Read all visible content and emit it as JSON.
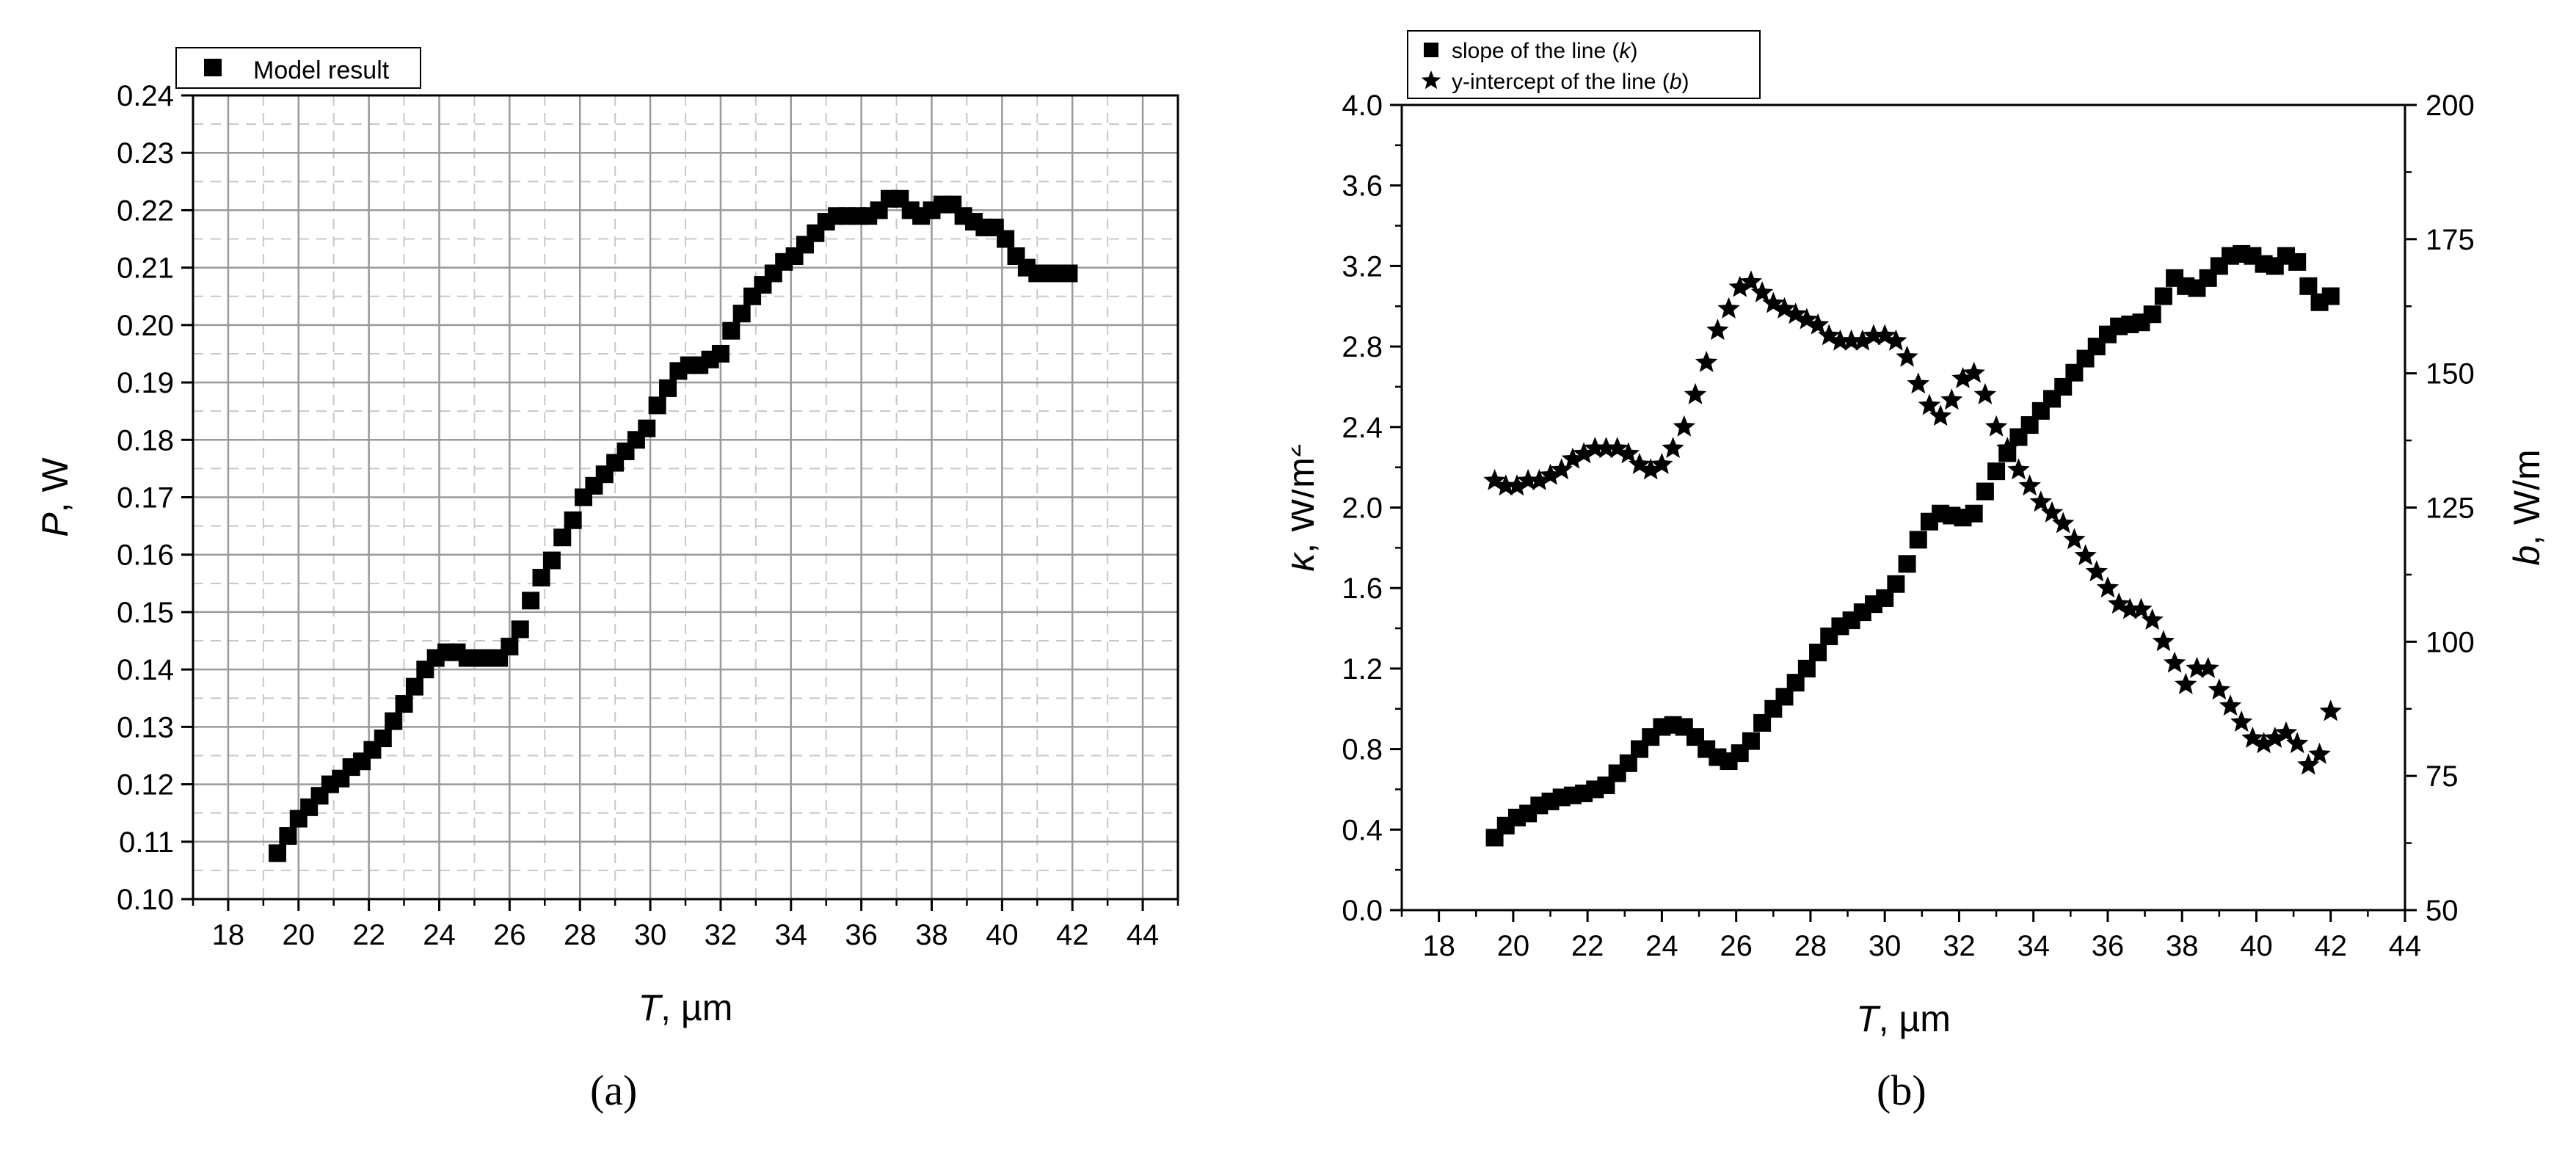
{
  "chart_data": [
    {
      "panel": "(a)",
      "type": "scatter",
      "xlabel_italic": "T",
      "xlabel_rest": ", µm",
      "ylabel_italic": "P",
      "ylabel_rest": ", W",
      "xlim": [
        17,
        45
      ],
      "ylim": [
        0.1,
        0.24
      ],
      "xticks": [
        "18",
        "20",
        "22",
        "24",
        "26",
        "28",
        "30",
        "32",
        "34",
        "36",
        "38",
        "40",
        "42",
        "44"
      ],
      "yticks": [
        "0.10",
        "0.11",
        "0.12",
        "0.13",
        "0.14",
        "0.15",
        "0.16",
        "0.17",
        "0.18",
        "0.19",
        "0.20",
        "0.21",
        "0.22",
        "0.23",
        "0.24"
      ],
      "grid": true,
      "legend_position": "top-left",
      "series": [
        {
          "name": "Model result",
          "marker": "square",
          "x": [
            19.4,
            19.7,
            20.0,
            20.3,
            20.6,
            20.9,
            21.2,
            21.5,
            21.8,
            22.1,
            22.4,
            22.7,
            23.0,
            23.3,
            23.6,
            23.9,
            24.2,
            24.5,
            24.8,
            25.1,
            25.4,
            25.7,
            26.0,
            26.3,
            26.6,
            26.9,
            27.2,
            27.5,
            27.8,
            28.1,
            28.4,
            28.7,
            29.0,
            29.3,
            29.6,
            29.9,
            30.2,
            30.5,
            30.8,
            31.1,
            31.4,
            31.7,
            32.0,
            32.3,
            32.6,
            32.9,
            33.2,
            33.5,
            33.8,
            34.1,
            34.4,
            34.7,
            35.0,
            35.3,
            35.6,
            35.9,
            36.2,
            36.5,
            36.8,
            37.1,
            37.4,
            37.7,
            38.0,
            38.3,
            38.6,
            38.9,
            39.2,
            39.5,
            39.8,
            40.1,
            40.4,
            40.7,
            41.0,
            41.3,
            41.6,
            41.9
          ],
          "y": [
            0.108,
            0.111,
            0.114,
            0.116,
            0.118,
            0.12,
            0.121,
            0.123,
            0.124,
            0.126,
            0.128,
            0.131,
            0.134,
            0.137,
            0.14,
            0.142,
            0.143,
            0.143,
            0.142,
            0.142,
            0.142,
            0.142,
            0.144,
            0.147,
            0.152,
            0.156,
            0.159,
            0.163,
            0.166,
            0.17,
            0.172,
            0.174,
            0.176,
            0.178,
            0.18,
            0.182,
            0.186,
            0.189,
            0.192,
            0.193,
            0.193,
            0.194,
            0.195,
            0.199,
            0.202,
            0.205,
            0.207,
            0.209,
            0.211,
            0.212,
            0.214,
            0.216,
            0.218,
            0.219,
            0.219,
            0.219,
            0.219,
            0.22,
            0.222,
            0.222,
            0.22,
            0.219,
            0.22,
            0.221,
            0.221,
            0.219,
            0.218,
            0.217,
            0.217,
            0.215,
            0.212,
            0.21,
            0.209,
            0.209,
            0.209,
            0.209
          ]
        }
      ]
    },
    {
      "panel": "(b)",
      "type": "scatter",
      "xlabel_italic": "T",
      "xlabel_rest": ", µm",
      "ylabel_left_italic": "k",
      "ylabel_left_rest": ", W/m",
      "ylabel_left_sup": "2",
      "ylabel_right_italic": "b",
      "ylabel_right_rest": ", W/m",
      "xlim": [
        17,
        44
      ],
      "ylim_left": [
        0.0,
        4.0
      ],
      "ylim_right": [
        50,
        200
      ],
      "xticks": [
        "18",
        "20",
        "22",
        "24",
        "26",
        "28",
        "30",
        "32",
        "34",
        "36",
        "38",
        "40",
        "42",
        "44"
      ],
      "yticks_left": [
        "0.0",
        "0.4",
        "0.8",
        "1.2",
        "1.6",
        "2.0",
        "2.4",
        "2.8",
        "3.2",
        "3.6",
        "4.0"
      ],
      "yticks_right": [
        "50",
        "75",
        "100",
        "125",
        "150",
        "175",
        "200"
      ],
      "grid": false,
      "legend_position": "top-left",
      "series": [
        {
          "name_prefix": "slope of the line (",
          "name_italic": "k",
          "name_suffix": ")",
          "marker": "square",
          "axis": "left",
          "x": [
            19.5,
            19.8,
            20.1,
            20.4,
            20.7,
            21.0,
            21.3,
            21.6,
            21.9,
            22.2,
            22.5,
            22.8,
            23.1,
            23.4,
            23.7,
            24.0,
            24.3,
            24.6,
            24.9,
            25.2,
            25.5,
            25.8,
            26.1,
            26.4,
            26.7,
            27.0,
            27.3,
            27.6,
            27.9,
            28.2,
            28.5,
            28.8,
            29.1,
            29.4,
            29.7,
            30.0,
            30.3,
            30.6,
            30.9,
            31.2,
            31.5,
            31.8,
            32.1,
            32.4,
            32.7,
            33.0,
            33.3,
            33.6,
            33.9,
            34.2,
            34.5,
            34.8,
            35.1,
            35.4,
            35.7,
            36.0,
            36.3,
            36.6,
            36.9,
            37.2,
            37.5,
            37.8,
            38.1,
            38.4,
            38.7,
            39.0,
            39.3,
            39.6,
            39.9,
            40.2,
            40.5,
            40.8,
            41.1,
            41.4,
            41.7,
            42.0
          ],
          "y": [
            0.36,
            0.42,
            0.46,
            0.48,
            0.52,
            0.54,
            0.56,
            0.57,
            0.58,
            0.6,
            0.62,
            0.68,
            0.73,
            0.8,
            0.86,
            0.91,
            0.92,
            0.91,
            0.86,
            0.8,
            0.76,
            0.74,
            0.78,
            0.84,
            0.93,
            1.0,
            1.06,
            1.13,
            1.2,
            1.28,
            1.36,
            1.41,
            1.44,
            1.48,
            1.52,
            1.55,
            1.62,
            1.72,
            1.84,
            1.93,
            1.97,
            1.96,
            1.95,
            1.97,
            2.08,
            2.18,
            2.27,
            2.35,
            2.41,
            2.48,
            2.54,
            2.6,
            2.67,
            2.74,
            2.8,
            2.86,
            2.9,
            2.91,
            2.92,
            2.96,
            3.05,
            3.14,
            3.1,
            3.09,
            3.14,
            3.2,
            3.25,
            3.26,
            3.25,
            3.21,
            3.2,
            3.25,
            3.22,
            3.1,
            3.02,
            3.05
          ]
        },
        {
          "name_prefix": "y-intercept of the line (",
          "name_italic": "b",
          "name_suffix": ")",
          "marker": "star",
          "axis": "right",
          "x": [
            19.5,
            19.8,
            20.1,
            20.4,
            20.7,
            21.0,
            21.3,
            21.6,
            21.9,
            22.2,
            22.5,
            22.8,
            23.1,
            23.4,
            23.7,
            24.0,
            24.3,
            24.6,
            24.9,
            25.2,
            25.5,
            25.8,
            26.1,
            26.4,
            26.7,
            27.0,
            27.3,
            27.6,
            27.9,
            28.2,
            28.5,
            28.8,
            29.1,
            29.4,
            29.7,
            30.0,
            30.3,
            30.6,
            30.9,
            31.2,
            31.5,
            31.8,
            32.1,
            32.4,
            32.7,
            33.0,
            33.3,
            33.6,
            33.9,
            34.2,
            34.5,
            34.8,
            35.1,
            35.4,
            35.7,
            36.0,
            36.3,
            36.6,
            36.9,
            37.2,
            37.5,
            37.8,
            38.1,
            38.4,
            38.7,
            39.0,
            39.3,
            39.6,
            39.9,
            40.2,
            40.5,
            40.8,
            41.1,
            41.4,
            41.7,
            42.0
          ],
          "y": [
            130,
            129,
            129,
            130,
            130,
            131,
            132,
            134,
            135,
            136,
            136,
            136,
            135,
            133,
            132,
            133,
            136,
            140,
            146,
            152,
            158,
            162,
            166,
            167,
            165,
            163,
            162,
            161,
            160,
            159,
            157,
            156,
            156,
            156,
            157,
            157,
            156,
            153,
            148,
            144,
            142,
            145,
            149,
            150,
            146,
            140,
            136,
            132,
            129,
            126,
            124,
            122,
            119,
            116,
            113,
            110,
            107,
            106,
            106,
            104,
            100,
            96,
            92,
            95,
            95,
            91,
            88,
            85,
            82,
            81,
            82,
            83,
            81,
            77,
            79,
            87
          ]
        }
      ]
    }
  ]
}
